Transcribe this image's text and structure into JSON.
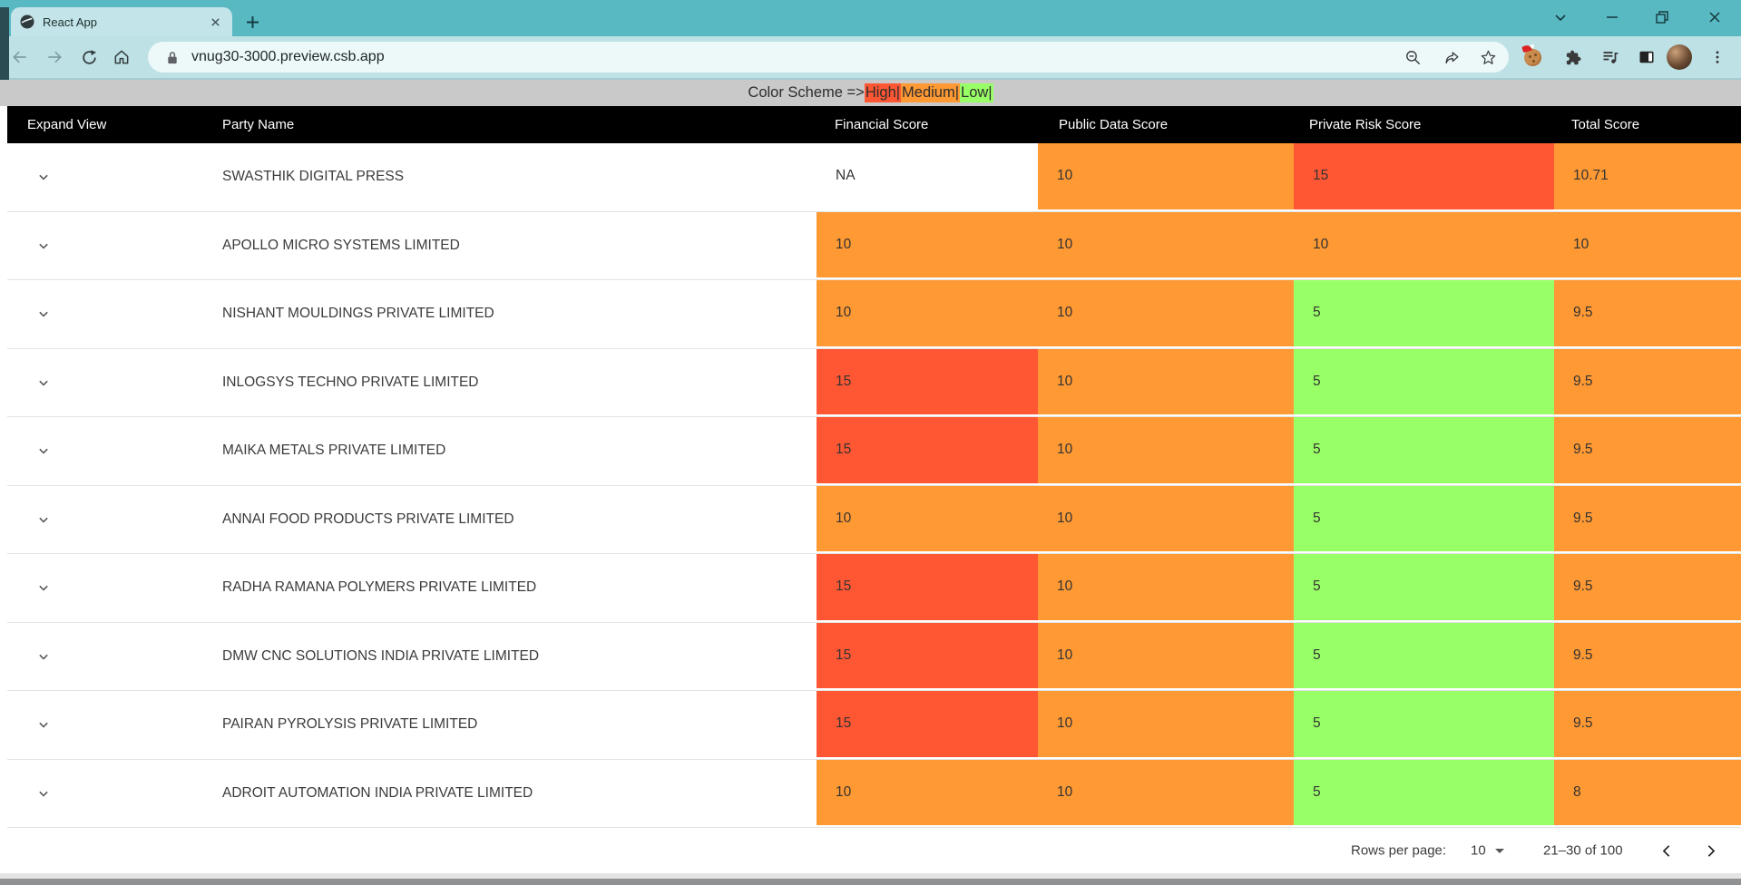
{
  "browser": {
    "tab_title": "React App",
    "url": "vnug30-3000.preview.csb.app"
  },
  "banner": {
    "prefix": "Color Scheme =>",
    "levels": [
      {
        "label": "High|",
        "level": "high"
      },
      {
        "label": "Medium|",
        "level": "medium"
      },
      {
        "label": "Low|",
        "level": "low"
      }
    ]
  },
  "colors": {
    "high": "#FF5733",
    "medium": "#FF9933",
    "low": "#99FF66"
  },
  "table": {
    "columns": [
      "Expand View",
      "Party Name",
      "Financial Score",
      "Public Data Score",
      "Private Risk Score",
      "Total Score"
    ],
    "rows": [
      {
        "party": "SWASTHIK DIGITAL PRESS",
        "financial": {
          "value": "NA",
          "level": "none"
        },
        "public": {
          "value": "10",
          "level": "medium"
        },
        "private": {
          "value": "15",
          "level": "high"
        },
        "total": {
          "value": "10.71",
          "level": "medium"
        }
      },
      {
        "party": "APOLLO MICRO SYSTEMS LIMITED",
        "financial": {
          "value": "10",
          "level": "medium"
        },
        "public": {
          "value": "10",
          "level": "medium"
        },
        "private": {
          "value": "10",
          "level": "medium"
        },
        "total": {
          "value": "10",
          "level": "medium"
        }
      },
      {
        "party": "NISHANT MOULDINGS PRIVATE LIMITED",
        "financial": {
          "value": "10",
          "level": "medium"
        },
        "public": {
          "value": "10",
          "level": "medium"
        },
        "private": {
          "value": "5",
          "level": "low"
        },
        "total": {
          "value": "9.5",
          "level": "medium"
        }
      },
      {
        "party": "INLOGSYS TECHNO PRIVATE LIMITED",
        "financial": {
          "value": "15",
          "level": "high"
        },
        "public": {
          "value": "10",
          "level": "medium"
        },
        "private": {
          "value": "5",
          "level": "low"
        },
        "total": {
          "value": "9.5",
          "level": "medium"
        }
      },
      {
        "party": "MAIKA METALS PRIVATE LIMITED",
        "financial": {
          "value": "15",
          "level": "high"
        },
        "public": {
          "value": "10",
          "level": "medium"
        },
        "private": {
          "value": "5",
          "level": "low"
        },
        "total": {
          "value": "9.5",
          "level": "medium"
        }
      },
      {
        "party": "ANNAI FOOD PRODUCTS PRIVATE LIMITED",
        "financial": {
          "value": "10",
          "level": "medium"
        },
        "public": {
          "value": "10",
          "level": "medium"
        },
        "private": {
          "value": "5",
          "level": "low"
        },
        "total": {
          "value": "9.5",
          "level": "medium"
        }
      },
      {
        "party": "RADHA RAMANA POLYMERS PRIVATE LIMITED",
        "financial": {
          "value": "15",
          "level": "high"
        },
        "public": {
          "value": "10",
          "level": "medium"
        },
        "private": {
          "value": "5",
          "level": "low"
        },
        "total": {
          "value": "9.5",
          "level": "medium"
        }
      },
      {
        "party": "DMW CNC SOLUTIONS INDIA PRIVATE LIMITED",
        "financial": {
          "value": "15",
          "level": "high"
        },
        "public": {
          "value": "10",
          "level": "medium"
        },
        "private": {
          "value": "5",
          "level": "low"
        },
        "total": {
          "value": "9.5",
          "level": "medium"
        }
      },
      {
        "party": "PAIRAN PYROLYSIS PRIVATE LIMITED",
        "financial": {
          "value": "15",
          "level": "high"
        },
        "public": {
          "value": "10",
          "level": "medium"
        },
        "private": {
          "value": "5",
          "level": "low"
        },
        "total": {
          "value": "9.5",
          "level": "medium"
        }
      },
      {
        "party": "ADROIT AUTOMATION INDIA PRIVATE LIMITED",
        "financial": {
          "value": "10",
          "level": "medium"
        },
        "public": {
          "value": "10",
          "level": "medium"
        },
        "private": {
          "value": "5",
          "level": "low"
        },
        "total": {
          "value": "8",
          "level": "medium"
        }
      }
    ]
  },
  "pagination": {
    "rows_per_page_label": "Rows per page:",
    "rows_per_page_value": "10",
    "range_label": "21–30 of 100"
  }
}
